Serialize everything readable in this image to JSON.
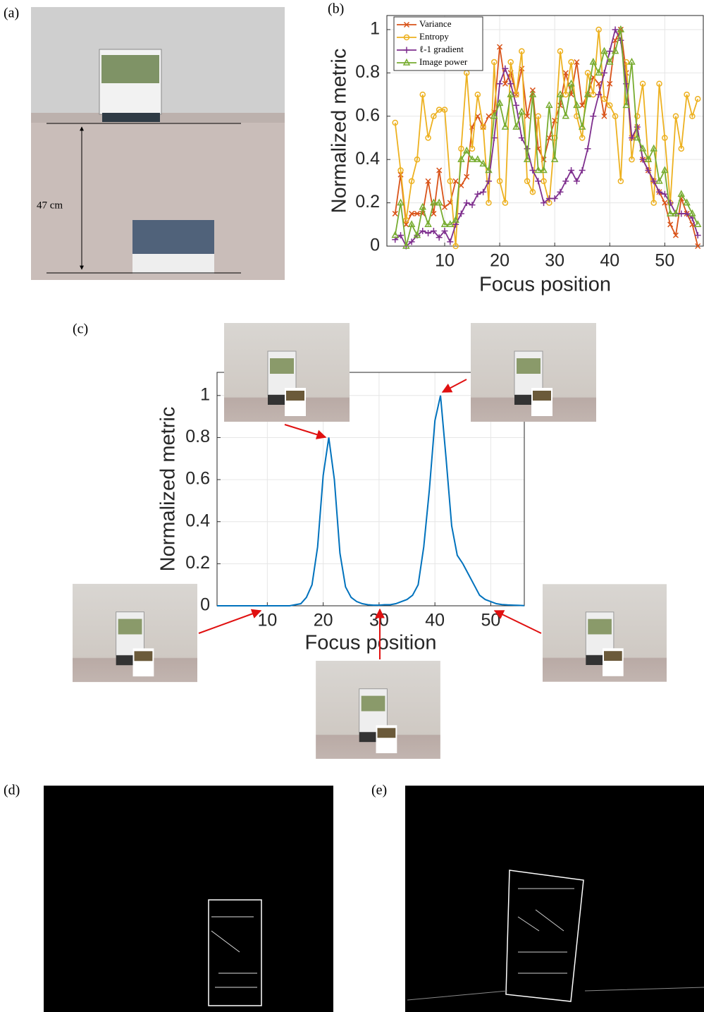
{
  "panel_labels": [
    "(a)",
    "(b)",
    "(c)",
    "(d)",
    "(e)"
  ],
  "distance_label": "47 cm",
  "chart_data": [
    {
      "type": "line",
      "xlabel": "Focus position",
      "ylabel": "Normalized metric",
      "xlim": [
        -0.5,
        57
      ],
      "ylim": [
        0,
        1.065
      ],
      "xticks": [
        10,
        20,
        30,
        40,
        50
      ],
      "yticks": [
        0,
        0.2,
        0.4,
        0.6,
        0.8,
        1
      ],
      "grid": true,
      "legend": "upper left",
      "x": [
        1,
        2,
        3,
        4,
        5,
        6,
        7,
        8,
        9,
        10,
        11,
        12,
        13,
        14,
        15,
        16,
        17,
        18,
        19,
        20,
        21,
        22,
        23,
        24,
        25,
        26,
        27,
        28,
        29,
        30,
        31,
        32,
        33,
        34,
        35,
        36,
        37,
        38,
        39,
        40,
        41,
        42,
        43,
        44,
        45,
        46,
        47,
        48,
        49,
        50,
        51,
        52,
        53,
        54,
        55,
        56
      ],
      "series": [
        {
          "name": "Variance",
          "color": "#d95319",
          "marker": "x",
          "values": [
            0.15,
            0.33,
            0.1,
            0.15,
            0.15,
            0.15,
            0.3,
            0.15,
            0.35,
            0.18,
            0.2,
            0.3,
            0.28,
            0.32,
            0.55,
            0.6,
            0.55,
            0.6,
            0.62,
            0.92,
            0.75,
            0.8,
            0.7,
            0.82,
            0.6,
            0.72,
            0.45,
            0.4,
            0.5,
            0.58,
            0.65,
            0.8,
            0.7,
            0.85,
            0.65,
            0.7,
            0.78,
            0.75,
            0.6,
            0.75,
            0.95,
            1.0,
            0.8,
            0.5,
            0.55,
            0.4,
            0.35,
            0.3,
            0.25,
            0.2,
            0.1,
            0.05,
            0.22,
            0.15,
            0.1,
            0.0
          ]
        },
        {
          "name": "Entropy",
          "color": "#edb120",
          "marker": "o",
          "values": [
            0.57,
            0.35,
            0.12,
            0.3,
            0.4,
            0.7,
            0.5,
            0.6,
            0.63,
            0.63,
            0.3,
            0.0,
            0.45,
            0.8,
            0.45,
            0.7,
            0.55,
            0.2,
            0.85,
            0.3,
            0.2,
            0.85,
            0.7,
            0.9,
            0.3,
            0.25,
            0.6,
            0.3,
            0.2,
            0.5,
            0.9,
            0.7,
            0.85,
            0.6,
            0.5,
            0.8,
            0.7,
            1.0,
            0.68,
            0.65,
            0.6,
            0.3,
            0.85,
            0.4,
            0.6,
            0.75,
            0.4,
            0.2,
            0.75,
            0.5,
            0.2,
            0.6,
            0.45,
            0.7,
            0.6,
            0.68
          ]
        },
        {
          "name": "ℓ-1 gradient",
          "color": "#7e2f8e",
          "marker": "+",
          "values": [
            0.03,
            0.05,
            0.0,
            0.02,
            0.05,
            0.07,
            0.06,
            0.07,
            0.04,
            0.07,
            0.02,
            0.1,
            0.15,
            0.2,
            0.19,
            0.24,
            0.25,
            0.3,
            0.5,
            0.75,
            0.82,
            0.75,
            0.65,
            0.5,
            0.45,
            0.35,
            0.3,
            0.2,
            0.22,
            0.22,
            0.25,
            0.3,
            0.35,
            0.3,
            0.35,
            0.45,
            0.6,
            0.7,
            0.8,
            0.9,
            1.0,
            0.95,
            0.75,
            0.5,
            0.55,
            0.4,
            0.35,
            0.3,
            0.25,
            0.24,
            0.2,
            0.15,
            0.15,
            0.15,
            0.13,
            0.05
          ]
        },
        {
          "name": "Image power",
          "color": "#77ac30",
          "marker": "^",
          "values": [
            0.05,
            0.2,
            0.0,
            0.1,
            0.05,
            0.18,
            0.1,
            0.2,
            0.2,
            0.1,
            0.1,
            0.12,
            0.4,
            0.44,
            0.4,
            0.4,
            0.38,
            0.35,
            0.6,
            0.66,
            0.55,
            0.7,
            0.55,
            0.62,
            0.4,
            0.7,
            0.35,
            0.35,
            0.65,
            0.4,
            0.7,
            0.6,
            0.75,
            0.65,
            0.55,
            0.7,
            0.85,
            0.8,
            0.9,
            0.85,
            0.9,
            1.0,
            0.65,
            0.85,
            0.5,
            0.45,
            0.4,
            0.45,
            0.3,
            0.35,
            0.15,
            0.15,
            0.24,
            0.2,
            0.15,
            0.1
          ]
        }
      ]
    },
    {
      "type": "line",
      "xlabel": "Focus position",
      "ylabel": "Normalized metric",
      "xlim": [
        1,
        56
      ],
      "ylim": [
        0,
        1.11
      ],
      "xticks": [
        10,
        20,
        30,
        40,
        50
      ],
      "yticks": [
        0,
        0.2,
        0.4,
        0.6,
        0.8,
        1
      ],
      "grid": true,
      "x": [
        1,
        2,
        3,
        4,
        5,
        6,
        7,
        8,
        9,
        10,
        11,
        12,
        13,
        14,
        15,
        16,
        17,
        18,
        19,
        20,
        21,
        22,
        23,
        24,
        25,
        26,
        27,
        28,
        29,
        30,
        31,
        32,
        33,
        34,
        35,
        36,
        37,
        38,
        39,
        40,
        41,
        42,
        43,
        44,
        45,
        46,
        47,
        48,
        49,
        50,
        51,
        52,
        53,
        54,
        55,
        56
      ],
      "series": [
        {
          "color": "#0072bd",
          "values": [
            0,
            0,
            0,
            0,
            0,
            0,
            0,
            0,
            0,
            0,
            0,
            0,
            0,
            0,
            0.005,
            0.01,
            0.04,
            0.1,
            0.28,
            0.62,
            0.8,
            0.6,
            0.25,
            0.09,
            0.04,
            0.02,
            0.01,
            0.005,
            0.003,
            0.003,
            0.005,
            0.005,
            0.01,
            0.02,
            0.03,
            0.05,
            0.1,
            0.28,
            0.55,
            0.88,
            1,
            0.7,
            0.38,
            0.24,
            0.2,
            0.15,
            0.1,
            0.05,
            0.03,
            0.02,
            0.01,
            0.006,
            0.004,
            0.003,
            0.002,
            0.001
          ]
        }
      ]
    }
  ]
}
